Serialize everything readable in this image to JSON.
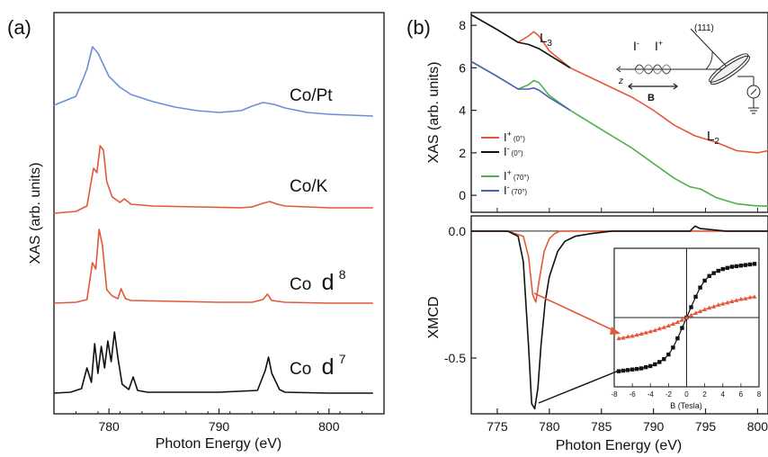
{
  "chart_data": [
    {
      "panel": "(a)",
      "type": "line",
      "xlabel": "Photon Energy (eV)",
      "ylabel": "XAS  (arb. units)",
      "xlim": [
        775,
        805
      ],
      "xticks": [
        780,
        790,
        800
      ],
      "colors": {
        "blue": "#6b8fd6",
        "red": "#e4583a",
        "black": "#111111"
      },
      "series": [
        {
          "name": "Co/Pt",
          "color": "#6b8fd6",
          "offset": 3.0,
          "x": [
            775,
            777,
            778,
            778.5,
            779,
            780,
            781,
            782,
            784,
            786,
            788,
            790,
            792,
            793,
            794,
            795,
            796,
            798,
            800,
            802,
            804
          ],
          "y": [
            0.2,
            0.3,
            0.6,
            0.85,
            0.78,
            0.52,
            0.4,
            0.32,
            0.24,
            0.18,
            0.14,
            0.12,
            0.14,
            0.19,
            0.23,
            0.21,
            0.17,
            0.12,
            0.1,
            0.09,
            0.08
          ]
        },
        {
          "name": "Co/K",
          "color": "#e4583a",
          "offset": 2.0,
          "x": [
            775,
            777,
            778,
            778.6,
            778.9,
            779.2,
            779.5,
            779.8,
            780.3,
            781,
            781.4,
            782,
            784,
            788,
            792,
            793,
            794,
            794.6,
            795.3,
            796,
            798,
            800,
            804
          ],
          "y": [
            0.0,
            0.02,
            0.08,
            0.5,
            0.45,
            0.75,
            0.7,
            0.35,
            0.18,
            0.12,
            0.16,
            0.1,
            0.08,
            0.07,
            0.06,
            0.07,
            0.11,
            0.13,
            0.1,
            0.08,
            0.07,
            0.06,
            0.06
          ]
        },
        {
          "name": "Co",
          "color": "#e4583a",
          "offset": 1.0,
          "x": [
            775,
            777,
            778,
            778.5,
            778.8,
            779.1,
            779.4,
            779.8,
            780.3,
            780.8,
            781.1,
            781.5,
            782,
            786,
            790,
            793,
            794,
            794.4,
            794.8,
            796,
            800,
            804
          ],
          "y": [
            0.0,
            0.01,
            0.04,
            0.45,
            0.38,
            0.82,
            0.65,
            0.15,
            0.08,
            0.05,
            0.16,
            0.05,
            0.03,
            0.02,
            0.01,
            0.01,
            0.04,
            0.1,
            0.03,
            0.01,
            0.0,
            0.0
          ]
        },
        {
          "name": "Co",
          "color": "#111111",
          "offset": 0.0,
          "x": [
            775,
            776.5,
            777.5,
            778,
            778.4,
            778.7,
            779,
            779.3,
            779.6,
            779.9,
            780.2,
            780.5,
            780.8,
            781.2,
            781.8,
            782.2,
            782.6,
            783.5,
            790,
            793.5,
            794.2,
            794.5,
            794.8,
            795.5,
            796,
            800,
            804
          ],
          "y": [
            0.0,
            0.01,
            0.05,
            0.28,
            0.12,
            0.55,
            0.22,
            0.52,
            0.28,
            0.58,
            0.35,
            0.68,
            0.4,
            0.1,
            0.04,
            0.18,
            0.03,
            0.01,
            0.01,
            0.03,
            0.25,
            0.4,
            0.22,
            0.04,
            0.01,
            0.0,
            0.0
          ]
        }
      ],
      "annotations": [
        {
          "series": 0,
          "text": "Co/Pt"
        },
        {
          "series": 1,
          "text": "Co/K"
        },
        {
          "series": 2,
          "text": "Co",
          "sup": "d",
          "power": "8"
        },
        {
          "series": 3,
          "text": "Co",
          "sup": "d",
          "power": "7"
        }
      ]
    },
    {
      "panel": "(b)",
      "type": "line",
      "xlabel": "Photon Energy (eV)",
      "xlim": [
        772.5,
        801
      ],
      "xticks": [
        775,
        780,
        785,
        790,
        795,
        800
      ],
      "top": {
        "ylabel": "XAS  (arb. units)",
        "ylim": [
          -0.8,
          8.6
        ],
        "yticks": [
          0,
          2,
          4,
          6,
          8
        ],
        "labels": {
          "L3": "L",
          "L3_sub": "3",
          "L2": "L",
          "L2_sub": "2"
        },
        "series": [
          {
            "name": "I+ (0°)",
            "color": "#e4583a",
            "x": [
              772.5,
              775,
              777,
              778,
              778.5,
              779,
              780,
              782,
              785,
              788,
              790,
              792,
              794,
              796,
              798,
              800,
              801
            ],
            "y": [
              8.5,
              7.8,
              7.2,
              7.5,
              7.7,
              7.5,
              6.8,
              6.0,
              5.3,
              4.6,
              4.0,
              3.3,
              2.8,
              2.5,
              2.1,
              2.0,
              2.1
            ]
          },
          {
            "name": "I- (0°)",
            "color": "#111111",
            "x": [
              772.5,
              775,
              777,
              778,
              778.5,
              779,
              780,
              782
            ],
            "y": [
              8.5,
              7.8,
              7.2,
              7.1,
              7.0,
              6.9,
              6.6,
              6.0
            ]
          },
          {
            "name": "I+ (70°)",
            "color": "#4fb14a",
            "x": [
              772.5,
              775,
              777,
              778,
              778.5,
              779,
              780,
              782,
              785,
              788,
              790,
              792,
              793.5,
              794.5,
              796,
              798,
              800,
              801
            ],
            "y": [
              6.3,
              5.6,
              5.0,
              5.2,
              5.4,
              5.3,
              4.7,
              4.0,
              3.1,
              2.2,
              1.5,
              0.8,
              0.4,
              0.3,
              -0.1,
              -0.4,
              -0.5,
              -0.5
            ]
          },
          {
            "name": "I- (70°)",
            "color": "#4a5fb4",
            "x": [
              772.5,
              775,
              777,
              778,
              778.5,
              779,
              780,
              782
            ],
            "y": [
              6.3,
              5.6,
              5.0,
              5.0,
              5.05,
              4.95,
              4.6,
              4.0
            ]
          }
        ],
        "legend": [
          {
            "i": "I",
            "sign": "+",
            "angle": "(0°)",
            "color": "#e4583a"
          },
          {
            "i": "I",
            "sign": "-",
            "angle": "(0°)",
            "color": "#111111"
          },
          {
            "i": "I",
            "sign": "+",
            "angle": "(70°)",
            "color": "#4fb14a"
          },
          {
            "i": "I",
            "sign": "-",
            "angle": "(70°)",
            "color": "#4a5fb4"
          }
        ],
        "inset_labels": {
          "I_minus": "I",
          "I_minus_sign": "-",
          "I_plus": "I",
          "I_plus_sign": "+",
          "direction": "(111)",
          "axis": "z",
          "field": "B"
        }
      },
      "bottom": {
        "ylabel": "XMCD",
        "ylim": [
          -0.72,
          0.06
        ],
        "yticks": [
          0.0,
          -0.5
        ],
        "ytick_labels": [
          "0.0",
          "-0.5"
        ],
        "series": [
          {
            "name": "red",
            "color": "#e4583a",
            "x": [
              772.5,
              776,
              777.5,
              778,
              778.4,
              778.7,
              779,
              779.5,
              780,
              780.5,
              781,
              782,
              783,
              786,
              790,
              794,
              797,
              801
            ],
            "y": [
              0.0,
              0.0,
              -0.02,
              -0.1,
              -0.25,
              -0.28,
              -0.2,
              -0.08,
              -0.03,
              -0.01,
              0.0,
              0.0,
              0.0,
              0.0,
              0.0,
              0.0,
              0.0,
              0.0
            ]
          },
          {
            "name": "black",
            "color": "#111111",
            "x": [
              772.5,
              776,
              777,
              777.5,
              778,
              778.3,
              778.6,
              778.9,
              779.2,
              779.6,
              780,
              780.8,
              781.5,
              782.5,
              784,
              786,
              790,
              793.5,
              794,
              794.5,
              797,
              801
            ],
            "y": [
              0.0,
              0.0,
              -0.02,
              -0.12,
              -0.45,
              -0.68,
              -0.7,
              -0.62,
              -0.45,
              -0.28,
              -0.18,
              -0.08,
              -0.04,
              -0.02,
              -0.01,
              0.0,
              0.0,
              0.0,
              0.02,
              0.01,
              0.0,
              0.0
            ]
          }
        ],
        "inset": {
          "xlabel": "B (Tesla)",
          "xlim": [
            -8,
            8
          ],
          "xticks": [
            -8,
            -6,
            -4,
            -2,
            0,
            2,
            4,
            6,
            8
          ],
          "ylim": [
            -1.2,
            1.2
          ],
          "series": [
            {
              "name": "black",
              "color": "#111111",
              "marker": "square",
              "x": [
                -7.5,
                -7,
                -6.5,
                -6,
                -5.5,
                -5,
                -4.5,
                -4,
                -3.5,
                -3,
                -2.5,
                -2,
                -1.5,
                -1,
                -0.5,
                0,
                0.5,
                1,
                1.5,
                2,
                2.5,
                3,
                3.5,
                4,
                4.5,
                5,
                5.5,
                6,
                6.5,
                7,
                7.5
              ],
              "y": [
                -0.93,
                -0.92,
                -0.91,
                -0.9,
                -0.89,
                -0.88,
                -0.86,
                -0.84,
                -0.81,
                -0.77,
                -0.72,
                -0.64,
                -0.52,
                -0.36,
                -0.18,
                0.0,
                0.18,
                0.36,
                0.52,
                0.64,
                0.72,
                0.77,
                0.81,
                0.84,
                0.86,
                0.88,
                0.89,
                0.9,
                0.91,
                0.92,
                0.93
              ]
            },
            {
              "name": "red",
              "color": "#e4583a",
              "marker": "triangle",
              "x": [
                -7.5,
                -7,
                -6.5,
                -6,
                -5.5,
                -5,
                -4.5,
                -4,
                -3.5,
                -3,
                -2.5,
                -2,
                -1.5,
                -1,
                -0.5,
                0,
                0.5,
                1,
                1.5,
                2,
                2.5,
                3,
                3.5,
                4,
                4.5,
                5,
                5.5,
                6,
                6.5,
                7,
                7.5
              ],
              "y": [
                -0.36,
                -0.35,
                -0.33,
                -0.32,
                -0.3,
                -0.28,
                -0.26,
                -0.24,
                -0.22,
                -0.19,
                -0.17,
                -0.14,
                -0.11,
                -0.08,
                -0.04,
                0.0,
                0.04,
                0.08,
                0.11,
                0.14,
                0.17,
                0.19,
                0.22,
                0.24,
                0.26,
                0.28,
                0.3,
                0.32,
                0.33,
                0.35,
                0.36
              ]
            }
          ]
        }
      }
    }
  ]
}
